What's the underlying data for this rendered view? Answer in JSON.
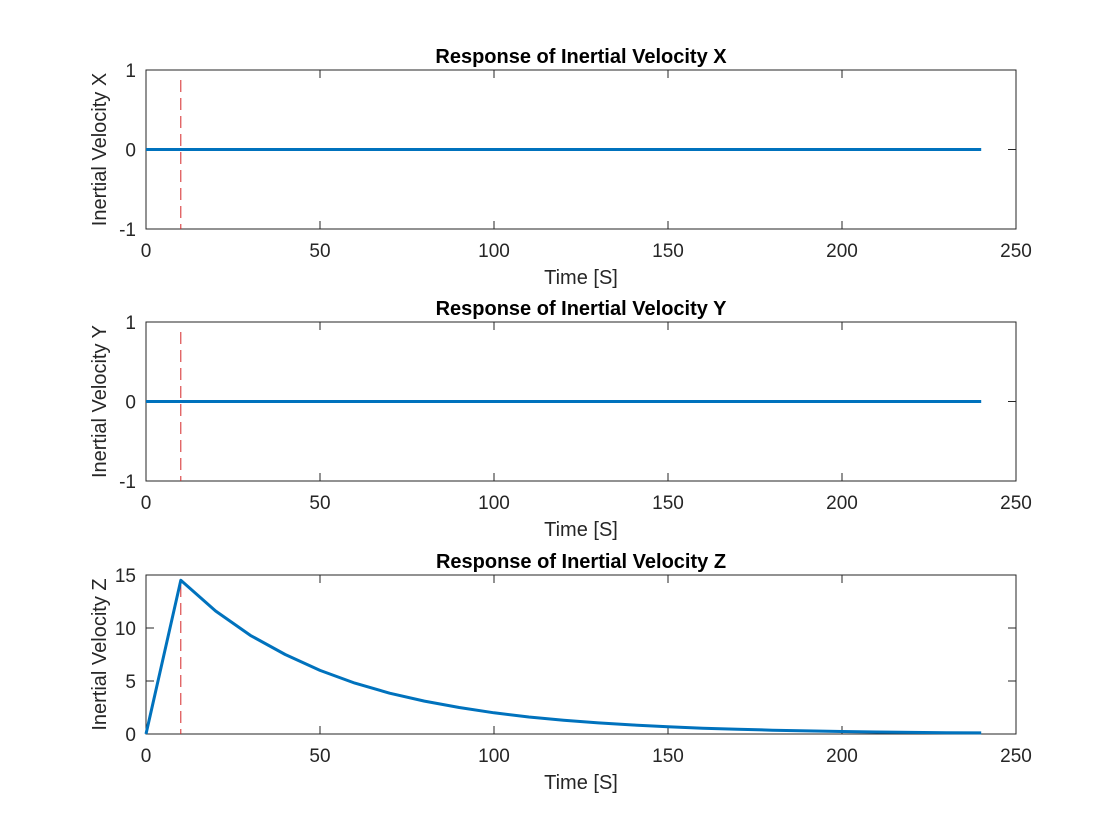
{
  "chart_data": [
    {
      "type": "line",
      "title": "Response of Inertial Velocity X",
      "xlabel": "Time [S]",
      "ylabel": "Inertial Velocity X",
      "xlim": [
        0,
        250
      ],
      "ylim": [
        -1,
        1
      ],
      "xticks": [
        0,
        50,
        100,
        150,
        200,
        250
      ],
      "yticks": [
        -1,
        0,
        1
      ],
      "grid": false,
      "series": [
        {
          "color": "#0072bd",
          "x": [
            0,
            240
          ],
          "y": [
            0,
            0
          ]
        }
      ],
      "marker_line": {
        "x": 10,
        "color": "#d62728",
        "style": "dashed"
      }
    },
    {
      "type": "line",
      "title": "Response of Inertial Velocity Y",
      "xlabel": "Time [S]",
      "ylabel": "Inertial Velocity Y",
      "xlim": [
        0,
        250
      ],
      "ylim": [
        -1,
        1
      ],
      "xticks": [
        0,
        50,
        100,
        150,
        200,
        250
      ],
      "yticks": [
        -1,
        0,
        1
      ],
      "grid": false,
      "series": [
        {
          "color": "#0072bd",
          "x": [
            0,
            240
          ],
          "y": [
            0,
            0
          ]
        }
      ],
      "marker_line": {
        "x": 10,
        "color": "#d62728",
        "style": "dashed"
      }
    },
    {
      "type": "line",
      "title": "Response of Inertial Velocity Z",
      "xlabel": "Time [S]",
      "ylabel": "Inertial Velocity Z",
      "xlim": [
        0,
        250
      ],
      "ylim": [
        0,
        15
      ],
      "xticks": [
        0,
        50,
        100,
        150,
        200,
        250
      ],
      "yticks": [
        0,
        5,
        10,
        15
      ],
      "grid": false,
      "series": [
        {
          "color": "#0072bd",
          "x": [
            0,
            10,
            20,
            30,
            40,
            50,
            60,
            70,
            80,
            90,
            100,
            110,
            120,
            130,
            140,
            150,
            160,
            170,
            180,
            190,
            200,
            210,
            220,
            230,
            240
          ],
          "y": [
            0,
            14.5,
            11.6,
            9.3,
            7.5,
            6.0,
            4.8,
            3.85,
            3.1,
            2.5,
            2.0,
            1.6,
            1.3,
            1.05,
            0.85,
            0.68,
            0.55,
            0.45,
            0.36,
            0.29,
            0.24,
            0.19,
            0.15,
            0.12,
            0.1
          ]
        }
      ],
      "marker_line": {
        "x": 10,
        "color": "#d62728",
        "style": "dashed"
      }
    }
  ]
}
